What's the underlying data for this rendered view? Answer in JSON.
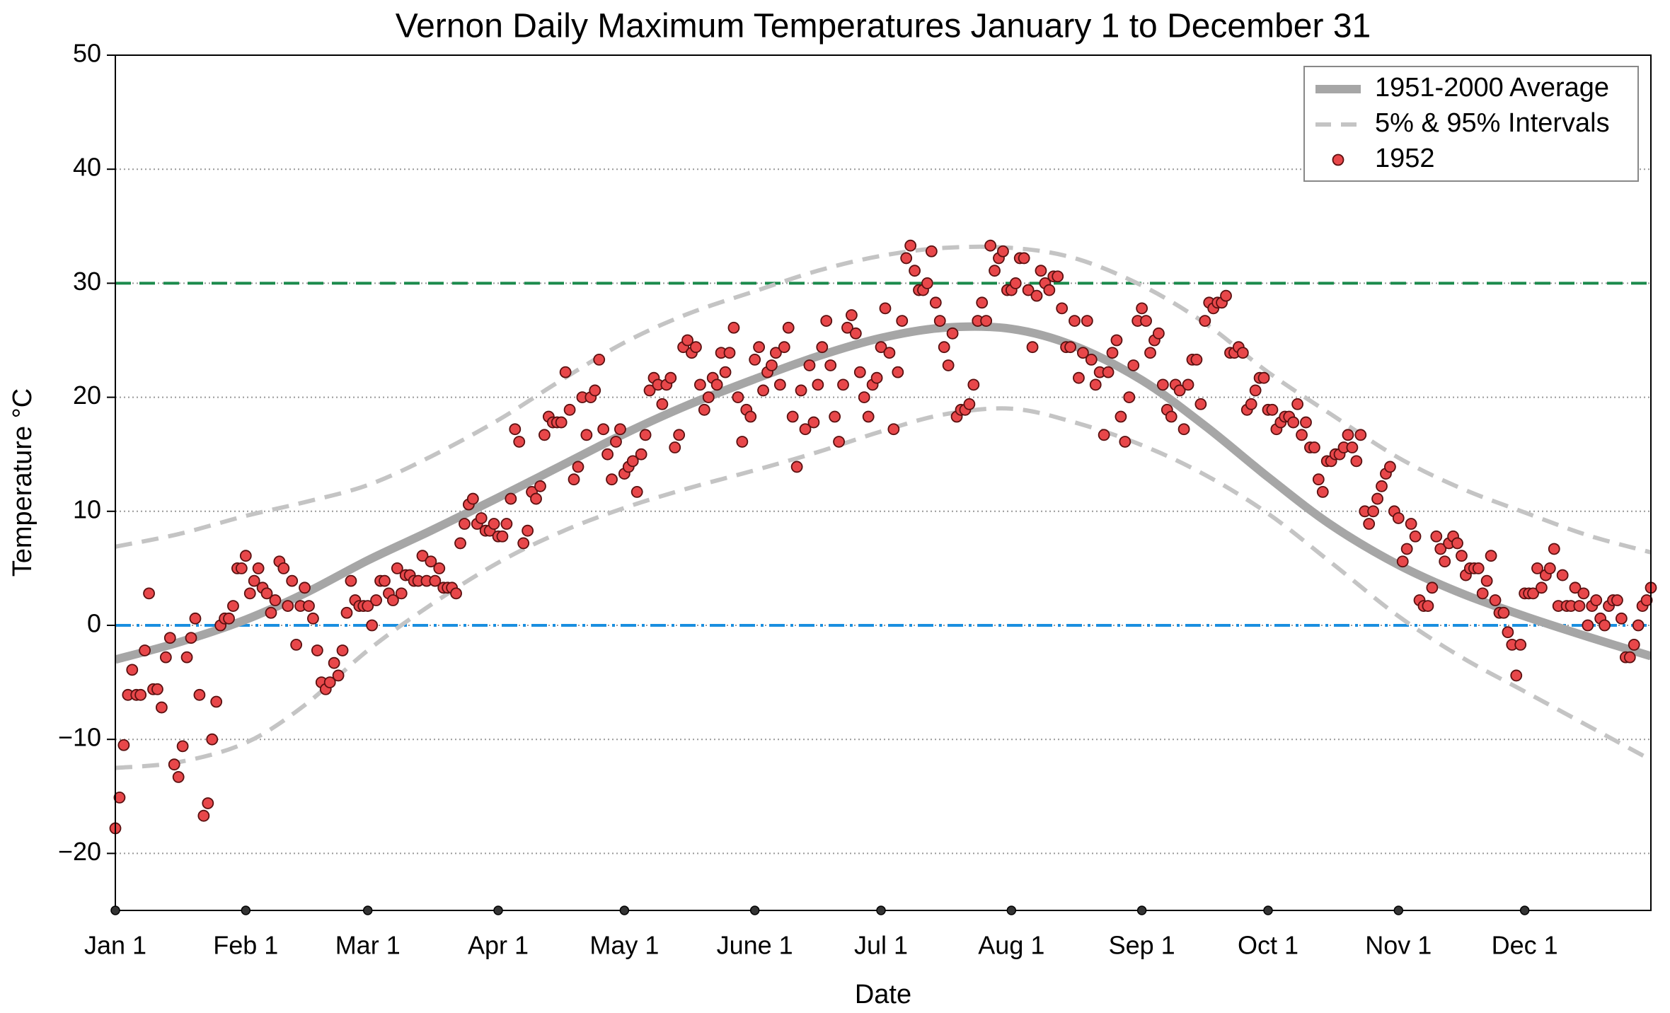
{
  "chart_data": {
    "type": "line",
    "title": "Vernon Daily Maximum Temperatures January 1 to December 31",
    "xlabel": "Date",
    "ylabel": "Temperature °C",
    "xlim": [
      1,
      366
    ],
    "xticks": [
      {
        "value": 1,
        "label": "Jan 1"
      },
      {
        "value": 32,
        "label": "Feb 1"
      },
      {
        "value": 61,
        "label": "Mar 1"
      },
      {
        "value": 92,
        "label": "Apr 1"
      },
      {
        "value": 122,
        "label": "May 1"
      },
      {
        "value": 153,
        "label": "June 1"
      },
      {
        "value": 183,
        "label": "Jul 1"
      },
      {
        "value": 214,
        "label": "Aug 1"
      },
      {
        "value": 245,
        "label": "Sep 1"
      },
      {
        "value": 275,
        "label": "Oct 1"
      },
      {
        "value": 306,
        "label": "Nov 1"
      },
      {
        "value": 336,
        "label": "Dec 1"
      }
    ],
    "ylim": [
      -25,
      50
    ],
    "yticks": [
      {
        "value": -20,
        "label": "−20"
      },
      {
        "value": -10,
        "label": "−10"
      },
      0,
      10,
      20,
      30,
      40,
      50
    ],
    "grid": true,
    "legend": "upper right",
    "hlines": [
      {
        "value": 30,
        "color": "#1b8a4c",
        "style": "dashed"
      },
      {
        "value": 0,
        "color": "#1a8fe0",
        "style": "dashdot"
      }
    ],
    "series": [
      {
        "name": "1951-2000 Average",
        "color": "#a6a6a6",
        "style": "line",
        "x": [
          1,
          16,
          32,
          46,
          61,
          76,
          92,
          107,
          122,
          137,
          153,
          168,
          183,
          198,
          214,
          229,
          245,
          260,
          275,
          290,
          306,
          321,
          336,
          351,
          366
        ],
        "values": [
          -3.0,
          -1.5,
          0.5,
          2.8,
          5.7,
          8.3,
          11.2,
          14.0,
          16.8,
          19.3,
          21.6,
          23.6,
          25.2,
          26.1,
          26.0,
          24.5,
          21.5,
          17.5,
          13.0,
          8.8,
          5.3,
          2.8,
          0.8,
          -1.0,
          -2.7
        ]
      },
      {
        "name": "5% & 95% Intervals",
        "color": "#c4c4c4",
        "style": "dashed",
        "x": [
          1,
          16,
          32,
          46,
          61,
          76,
          92,
          107,
          122,
          137,
          153,
          168,
          183,
          198,
          214,
          229,
          245,
          260,
          275,
          290,
          306,
          321,
          336,
          351,
          366
        ],
        "upper": [
          6.9,
          8.0,
          9.6,
          10.8,
          12.3,
          14.8,
          18.0,
          21.5,
          24.8,
          27.3,
          29.3,
          31.1,
          32.4,
          33.1,
          33.1,
          32.2,
          29.8,
          26.5,
          22.2,
          18.5,
          14.7,
          12.0,
          9.9,
          7.9,
          6.4
        ],
        "lower": [
          -12.5,
          -12.0,
          -10.3,
          -7.0,
          -2.2,
          1.8,
          5.5,
          8.2,
          10.3,
          12.0,
          13.6,
          15.2,
          17.0,
          18.5,
          19.0,
          17.8,
          15.8,
          13.2,
          9.8,
          5.5,
          0.8,
          -2.8,
          -5.8,
          -8.8,
          -11.8
        ]
      },
      {
        "name": "1952",
        "color": "#e8474a",
        "style": "marker",
        "x": [
          1,
          2,
          3,
          4,
          5,
          6,
          7,
          8,
          9,
          10,
          11,
          12,
          13,
          14,
          15,
          16,
          17,
          18,
          19,
          20,
          21,
          22,
          23,
          24,
          25,
          26,
          27,
          28,
          29,
          30,
          31,
          32,
          33,
          34,
          35,
          36,
          37,
          38,
          39,
          40,
          41,
          42,
          43,
          44,
          45,
          46,
          47,
          48,
          49,
          50,
          51,
          52,
          53,
          54,
          55,
          56,
          57,
          58,
          59,
          60,
          61,
          62,
          63,
          64,
          65,
          66,
          67,
          68,
          69,
          70,
          71,
          72,
          73,
          74,
          75,
          76,
          77,
          78,
          79,
          80,
          81,
          82,
          83,
          84,
          85,
          86,
          87,
          88,
          89,
          90,
          91,
          92,
          93,
          94,
          95,
          96,
          97,
          98,
          99,
          100,
          101,
          102,
          103,
          104,
          105,
          106,
          107,
          108,
          109,
          110,
          111,
          112,
          113,
          114,
          115,
          116,
          117,
          118,
          119,
          120,
          121,
          122,
          123,
          124,
          125,
          126,
          127,
          128,
          129,
          130,
          131,
          132,
          133,
          134,
          135,
          136,
          137,
          138,
          139,
          140,
          141,
          142,
          143,
          144,
          145,
          146,
          147,
          148,
          149,
          150,
          151,
          152,
          153,
          154,
          155,
          156,
          157,
          158,
          159,
          160,
          161,
          162,
          163,
          164,
          165,
          166,
          167,
          168,
          169,
          170,
          171,
          172,
          173,
          174,
          175,
          176,
          177,
          178,
          179,
          180,
          181,
          182,
          183,
          184,
          185,
          186,
          187,
          188,
          189,
          190,
          191,
          192,
          193,
          194,
          195,
          196,
          197,
          198,
          199,
          200,
          201,
          202,
          203,
          204,
          205,
          206,
          207,
          208,
          209,
          210,
          211,
          212,
          213,
          214,
          215,
          216,
          217,
          218,
          219,
          220,
          221,
          222,
          223,
          224,
          225,
          226,
          227,
          228,
          229,
          230,
          231,
          232,
          233,
          234,
          235,
          236,
          237,
          238,
          239,
          240,
          241,
          242,
          243,
          244,
          245,
          246,
          247,
          248,
          249,
          250,
          251,
          252,
          253,
          254,
          255,
          256,
          257,
          258,
          259,
          260,
          261,
          262,
          263,
          264,
          265,
          266,
          267,
          268,
          269,
          270,
          271,
          272,
          273,
          274,
          275,
          276,
          277,
          278,
          279,
          280,
          281,
          282,
          283,
          284,
          285,
          286,
          287,
          288,
          289,
          290,
          291,
          292,
          293,
          294,
          295,
          296,
          297,
          298,
          299,
          300,
          301,
          302,
          303,
          304,
          305,
          306,
          307,
          308,
          309,
          310,
          311,
          312,
          313,
          314,
          315,
          316,
          317,
          318,
          319,
          320,
          321,
          322,
          323,
          324,
          325,
          326,
          327,
          328,
          329,
          330,
          331,
          332,
          333,
          334,
          335,
          336,
          337,
          338,
          339,
          340,
          341,
          342,
          343,
          344,
          345,
          346,
          347,
          348,
          349,
          350,
          351,
          352,
          353,
          354,
          355,
          356,
          357,
          358,
          359,
          360,
          361,
          362,
          363,
          364,
          365,
          366
        ],
        "values": [
          -17.8,
          -15.1,
          -10.5,
          -6.1,
          -3.9,
          -6.1,
          -6.1,
          -2.2,
          2.8,
          -5.6,
          -5.6,
          -7.2,
          -2.8,
          -1.1,
          -12.2,
          -13.3,
          -10.6,
          -2.8,
          -1.1,
          0.6,
          -6.1,
          -16.7,
          -15.6,
          -10.0,
          -6.7,
          0.0,
          0.6,
          0.6,
          1.7,
          5.0,
          5.0,
          6.1,
          2.8,
          3.9,
          5.0,
          3.3,
          2.8,
          1.1,
          2.2,
          5.6,
          5.0,
          1.7,
          3.9,
          -1.7,
          1.7,
          3.3,
          1.7,
          0.6,
          -2.2,
          -5.0,
          -5.6,
          -5.0,
          -3.3,
          -4.4,
          -2.2,
          1.1,
          3.9,
          2.2,
          1.7,
          1.7,
          1.7,
          0.0,
          2.2,
          3.9,
          3.9,
          2.8,
          2.2,
          5.0,
          2.8,
          4.4,
          4.4,
          3.9,
          3.9,
          6.1,
          3.9,
          5.6,
          3.9,
          5.0,
          3.3,
          3.3,
          3.3,
          2.8,
          7.2,
          8.9,
          10.6,
          11.1,
          8.9,
          9.4,
          8.3,
          8.3,
          8.9,
          7.8,
          7.8,
          8.9,
          11.1,
          17.2,
          16.1,
          7.2,
          8.3,
          11.7,
          11.1,
          12.2,
          16.7,
          18.3,
          17.8,
          17.8,
          17.8,
          22.2,
          18.9,
          12.8,
          13.9,
          20.0,
          16.7,
          20.0,
          20.6,
          23.3,
          17.2,
          15.0,
          12.8,
          16.1,
          17.2,
          13.3,
          13.9,
          14.4,
          11.7,
          15.0,
          16.7,
          20.6,
          21.7,
          21.1,
          19.4,
          21.1,
          21.7,
          15.6,
          16.7,
          24.4,
          25.0,
          23.9,
          24.4,
          21.1,
          18.9,
          20.0,
          21.7,
          21.1,
          23.9,
          22.2,
          23.9,
          26.1,
          20.0,
          16.1,
          18.9,
          18.3,
          23.3,
          24.4,
          20.6,
          22.2,
          22.8,
          23.9,
          21.1,
          24.4,
          26.1,
          18.3,
          13.9,
          20.6,
          17.2,
          22.8,
          17.8,
          21.1,
          24.4,
          26.7,
          22.8,
          18.3,
          16.1,
          21.1,
          26.1,
          27.2,
          25.6,
          22.2,
          20.0,
          18.3,
          21.1,
          21.7,
          24.4,
          27.8,
          23.9,
          17.2,
          22.2,
          26.7,
          32.2,
          33.3,
          31.1,
          29.4,
          29.4,
          30.0,
          32.8,
          28.3,
          26.7,
          24.4,
          22.8,
          25.6,
          18.3,
          18.9,
          18.9,
          19.4,
          21.1,
          26.7,
          28.3,
          26.7,
          33.3,
          31.1,
          32.2,
          32.8,
          29.4,
          29.4,
          30.0,
          32.2,
          32.2,
          29.4,
          24.4,
          28.9,
          31.1,
          30.0,
          29.4,
          30.6,
          30.6,
          27.8,
          24.4,
          24.4,
          26.7,
          21.7,
          23.9,
          26.7,
          23.3,
          21.1,
          22.2,
          16.7,
          22.2,
          23.9,
          25.0,
          18.3,
          16.1,
          20.0,
          22.8,
          26.7,
          27.8,
          26.7,
          23.9,
          25.0,
          25.6,
          21.1,
          18.9,
          18.3,
          21.1,
          20.6,
          17.2,
          21.1,
          23.3,
          23.3,
          19.4,
          26.7,
          28.3,
          27.8,
          28.3,
          28.3,
          28.9,
          23.9,
          23.9,
          24.4,
          23.9,
          18.9,
          19.4,
          20.6,
          21.7,
          21.7,
          18.9,
          18.9,
          17.2,
          17.8,
          18.3,
          18.3,
          17.8,
          19.4,
          16.7,
          17.8,
          15.6,
          15.6,
          12.8,
          11.7,
          14.4,
          14.4,
          15.0,
          15.0,
          15.6,
          16.7,
          15.6,
          14.4,
          16.7,
          10.0,
          8.9,
          10.0,
          11.1,
          12.2,
          13.3,
          13.9,
          10.0,
          9.4,
          5.6,
          6.7,
          8.9,
          7.8,
          2.2,
          1.7,
          1.7,
          3.3,
          7.8,
          6.7,
          5.6,
          7.2,
          7.8,
          7.2,
          6.1,
          4.4,
          5.0,
          5.0,
          5.0,
          2.8,
          3.9,
          6.1,
          2.2,
          1.1,
          1.1,
          -0.6,
          -1.7,
          -4.4,
          -1.7,
          2.8,
          2.8,
          2.8,
          5.0,
          3.3,
          4.4,
          5.0,
          6.7,
          1.7,
          4.4,
          1.7,
          1.7,
          3.3,
          1.7,
          2.8,
          0.0,
          1.7,
          2.2,
          0.6,
          0.0,
          1.7,
          2.2,
          2.2,
          0.6,
          -2.8,
          -2.8,
          -1.7,
          0.0,
          1.7,
          2.2,
          3.3
        ]
      }
    ]
  }
}
